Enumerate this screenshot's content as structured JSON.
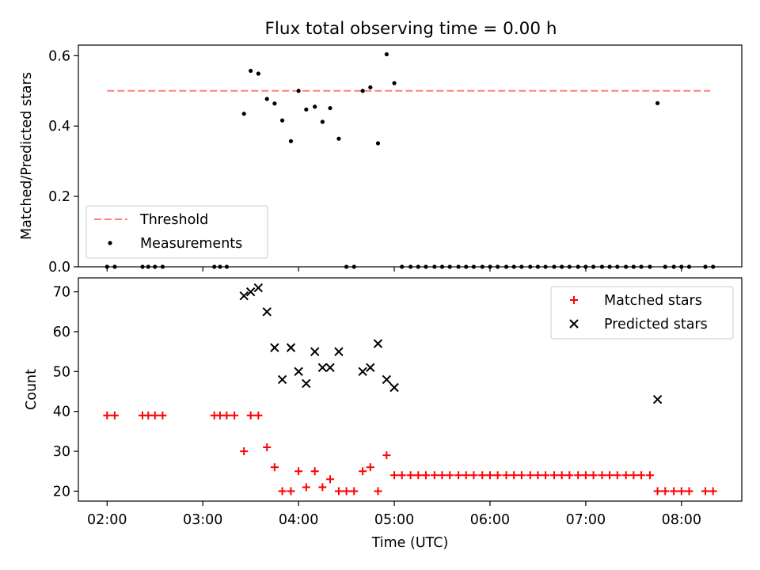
{
  "figure": {
    "title": "Flux total observing time = 0.00 h",
    "xlabel": "Time (UTC)",
    "x_ticks": [
      "02:00",
      "03:00",
      "04:00",
      "05:00",
      "06:00",
      "07:00",
      "08:00"
    ],
    "x_tick_values": [
      2.0,
      3.0,
      4.0,
      5.0,
      6.0,
      7.0,
      8.0
    ],
    "xlim": [
      1.7,
      8.63
    ]
  },
  "chart_data": [
    {
      "type": "scatter",
      "title": "Flux total observing time = 0.00 h",
      "xlabel": "",
      "ylabel": "Matched/Predicted stars",
      "ylim": [
        0,
        0.63
      ],
      "y_ticks": [
        0.0,
        0.2,
        0.4,
        0.6
      ],
      "y_tick_labels": [
        "0.0",
        "0.2",
        "0.4",
        "0.6"
      ],
      "legend_position": "lower-left",
      "threshold": {
        "name": "Threshold",
        "value": 0.5,
        "x_range": [
          2.0,
          8.3
        ],
        "color": "#ff7f7f"
      },
      "series": [
        {
          "name": "Measurements",
          "color": "#000000",
          "x": [
            2.0,
            2.08,
            2.37,
            2.43,
            2.5,
            2.58,
            3.12,
            3.18,
            3.25,
            3.43,
            3.5,
            3.58,
            3.67,
            3.75,
            3.83,
            3.92,
            4.0,
            4.08,
            4.17,
            4.25,
            4.33,
            4.42,
            4.5,
            4.58,
            4.67,
            4.75,
            4.83,
            4.92,
            5.0,
            5.08,
            5.17,
            5.25,
            5.33,
            5.42,
            5.5,
            5.58,
            5.67,
            5.75,
            5.83,
            5.92,
            6.0,
            6.08,
            6.17,
            6.25,
            6.33,
            6.42,
            6.5,
            6.58,
            6.67,
            6.75,
            6.83,
            6.92,
            7.0,
            7.08,
            7.17,
            7.25,
            7.33,
            7.42,
            7.5,
            7.58,
            7.67,
            7.75,
            7.83,
            7.92,
            8.0,
            8.08,
            8.25,
            8.33
          ],
          "y": [
            0.0,
            0.0,
            0.0,
            0.0,
            0.0,
            0.0,
            0.0,
            0.0,
            0.0,
            0.435,
            0.557,
            0.549,
            0.477,
            0.464,
            0.416,
            0.357,
            0.5,
            0.447,
            0.455,
            0.412,
            0.451,
            0.364,
            0.0,
            0.0,
            0.5,
            0.51,
            0.351,
            0.604,
            0.522,
            0.0,
            0.0,
            0.0,
            0.0,
            0.0,
            0.0,
            0.0,
            0.0,
            0.0,
            0.0,
            0.0,
            0.0,
            0.0,
            0.0,
            0.0,
            0.0,
            0.0,
            0.0,
            0.0,
            0.0,
            0.0,
            0.0,
            0.0,
            0.0,
            0.0,
            0.0,
            0.0,
            0.0,
            0.0,
            0.0,
            0.0,
            0.0,
            0.465,
            0.0,
            0.0,
            0.0,
            0.0,
            0.0,
            0.0
          ]
        }
      ]
    },
    {
      "type": "scatter",
      "xlabel": "Time (UTC)",
      "ylabel": "Count",
      "ylim": [
        17.5,
        73.5
      ],
      "y_ticks": [
        20,
        30,
        40,
        50,
        60,
        70
      ],
      "y_tick_labels": [
        "20",
        "30",
        "40",
        "50",
        "60",
        "70"
      ],
      "legend_position": "top-right",
      "series": [
        {
          "name": "Matched stars",
          "marker": "plus",
          "color": "#ff0000",
          "x": [
            2.0,
            2.08,
            2.37,
            2.43,
            2.5,
            2.58,
            3.12,
            3.18,
            3.25,
            3.33,
            3.43,
            3.5,
            3.58,
            3.67,
            3.75,
            3.83,
            3.92,
            4.0,
            4.08,
            4.17,
            4.25,
            4.33,
            4.42,
            4.5,
            4.58,
            4.67,
            4.75,
            4.83,
            4.92,
            5.0,
            5.08,
            5.17,
            5.25,
            5.33,
            5.42,
            5.5,
            5.58,
            5.67,
            5.75,
            5.83,
            5.92,
            6.0,
            6.08,
            6.17,
            6.25,
            6.33,
            6.42,
            6.5,
            6.58,
            6.67,
            6.75,
            6.83,
            6.92,
            7.0,
            7.08,
            7.17,
            7.25,
            7.33,
            7.42,
            7.5,
            7.58,
            7.67,
            7.75,
            7.83,
            7.92,
            8.0,
            8.08,
            8.25,
            8.33
          ],
          "y": [
            39,
            39,
            39,
            39,
            39,
            39,
            39,
            39,
            39,
            39,
            30,
            39,
            39,
            31,
            26,
            20,
            20,
            25,
            21,
            25,
            21,
            23,
            20,
            20,
            20,
            25,
            26,
            20,
            29,
            24,
            24,
            24,
            24,
            24,
            24,
            24,
            24,
            24,
            24,
            24,
            24,
            24,
            24,
            24,
            24,
            24,
            24,
            24,
            24,
            24,
            24,
            24,
            24,
            24,
            24,
            24,
            24,
            24,
            24,
            24,
            24,
            24,
            20,
            20,
            20,
            20,
            20,
            20,
            20
          ]
        },
        {
          "name": "Predicted stars",
          "marker": "x",
          "color": "#000000",
          "x": [
            3.43,
            3.5,
            3.58,
            3.67,
            3.75,
            3.83,
            3.92,
            4.0,
            4.08,
            4.17,
            4.25,
            4.33,
            4.42,
            4.67,
            4.75,
            4.83,
            4.92,
            5.0,
            7.75
          ],
          "y": [
            69,
            70,
            71,
            65,
            56,
            48,
            56,
            50,
            47,
            55,
            51,
            51,
            55,
            50,
            51,
            57,
            48,
            46,
            43
          ]
        }
      ]
    }
  ]
}
